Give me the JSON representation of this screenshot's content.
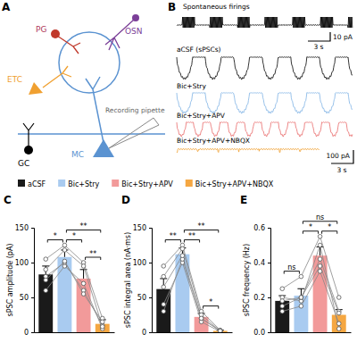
{
  "panel_a": {
    "label": "A",
    "pg": "PG",
    "osn": "OSN",
    "etc": "ETC",
    "mc": "MC",
    "gc": "GC",
    "pipette": "Recording pipette"
  },
  "panel_b": {
    "label": "B",
    "traces": [
      {
        "label": "Spontaneous firings",
        "color": "#000000"
      },
      {
        "label": "aCSF (sPSCs)",
        "color": "#000000"
      },
      {
        "label": "Bic+Stry",
        "color": "#7fb2e5"
      },
      {
        "label": "Bic+Stry+APV",
        "color": "#e86a6a"
      },
      {
        "label": "Bic+Stry+APV+NBQX",
        "color": "#f0a030"
      }
    ],
    "scale_bar_top": {
      "y": "10 pA",
      "x": "3 s"
    },
    "scale_bar_bottom": {
      "y": "100 pA",
      "x": "3 s"
    }
  },
  "legend": [
    {
      "name": "aCSF",
      "color": "#1a1a1a"
    },
    {
      "name": "Bic+Stry",
      "color": "#a9cbf0"
    },
    {
      "name": "Bic+Stry+APV",
      "color": "#f29a9a"
    },
    {
      "name": "Bic+Stry+APV+NBQX",
      "color": "#f5a742"
    }
  ],
  "chart_data": [
    {
      "type": "bar",
      "panel_label": "C",
      "y_label": "sPSC amplitude (pA)",
      "categories": [
        null,
        null,
        null,
        null
      ],
      "values": [
        83,
        108,
        77,
        12
      ],
      "errors": [
        12,
        10,
        13,
        6
      ],
      "colors": [
        "#1a1a1a",
        "#a9cbf0",
        "#f29a9a",
        "#f5a742"
      ],
      "cells": [
        [
          60,
          95,
          70,
          5
        ],
        [
          80,
          100,
          60,
          10
        ],
        [
          105,
          125,
          100,
          20
        ],
        [
          90,
          118,
          95,
          8
        ],
        [
          75,
          102,
          55,
          15
        ]
      ],
      "significance": [
        {
          "pair": [
            0,
            1
          ],
          "label": "*"
        },
        {
          "pair": [
            1,
            2
          ],
          "label": "*"
        },
        {
          "pair": [
            1,
            3
          ],
          "label": "**"
        },
        {
          "pair": [
            2,
            3
          ],
          "label": "**"
        }
      ],
      "ylim": [
        0,
        150
      ],
      "yticks": [
        0,
        50,
        100,
        150
      ]
    },
    {
      "type": "bar",
      "panel_label": "D",
      "y_label": "sPSC integral area (nA·ms)",
      "categories": [
        null,
        null,
        null,
        null
      ],
      "values": [
        62,
        112,
        22,
        2
      ],
      "errors": [
        15,
        9,
        5,
        1
      ],
      "colors": [
        "#1a1a1a",
        "#a9cbf0",
        "#f29a9a",
        "#f5a742"
      ],
      "cells": [
        [
          40,
          100,
          15,
          1
        ],
        [
          30,
          105,
          20,
          2
        ],
        [
          95,
          125,
          30,
          3
        ],
        [
          80,
          120,
          25,
          2
        ],
        [
          65,
          110,
          20,
          2
        ]
      ],
      "significance": [
        {
          "pair": [
            0,
            1
          ],
          "label": "**"
        },
        {
          "pair": [
            1,
            2
          ],
          "label": "**"
        },
        {
          "pair": [
            1,
            3
          ],
          "label": "**"
        },
        {
          "pair": [
            2,
            3
          ],
          "label": "*"
        }
      ],
      "ylim": [
        0,
        150
      ],
      "yticks": [
        0,
        50,
        100,
        150
      ]
    },
    {
      "type": "bar",
      "panel_label": "E",
      "y_label": "sPSC frequency (Hz)",
      "categories": [
        null,
        null,
        null,
        null
      ],
      "values": [
        0.18,
        0.21,
        0.44,
        0.1
      ],
      "errors": [
        0.03,
        0.04,
        0.05,
        0.03
      ],
      "colors": [
        "#1a1a1a",
        "#a9cbf0",
        "#f29a9a",
        "#f5a742"
      ],
      "cells": [
        [
          0.12,
          0.15,
          0.35,
          0.05
        ],
        [
          0.2,
          0.18,
          0.5,
          0.02
        ],
        [
          0.25,
          0.32,
          0.55,
          0.2
        ],
        [
          0.15,
          0.2,
          0.42,
          0.12
        ],
        [
          0.18,
          0.2,
          0.38,
          0.11
        ]
      ],
      "significance": [
        {
          "pair": [
            0,
            1
          ],
          "label": "ns"
        },
        {
          "pair": [
            1,
            2
          ],
          "label": "*"
        },
        {
          "pair": [
            1,
            3
          ],
          "label": "ns"
        },
        {
          "pair": [
            2,
            3
          ],
          "label": "*"
        }
      ],
      "ylim": [
        0,
        0.6
      ],
      "yticks": [
        {
          "value": 0,
          "label": "0.0"
        },
        0.2,
        0.4,
        0.6
      ]
    }
  ]
}
